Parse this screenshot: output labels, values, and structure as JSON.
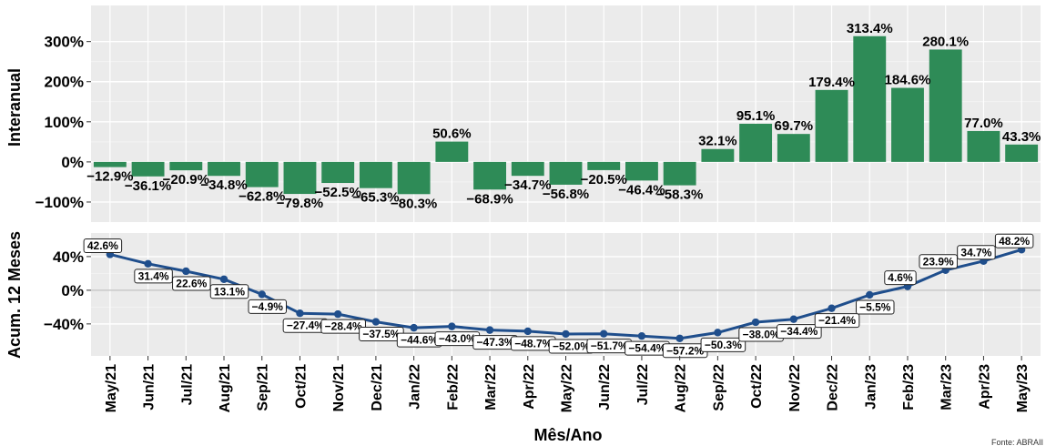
{
  "chart_data": [
    {
      "type": "bar",
      "ylabel": "Interanual",
      "categories": [
        "May/21",
        "Jun/21",
        "Jul/21",
        "Aug/21",
        "Sep/21",
        "Oct/21",
        "Nov/21",
        "Dec/21",
        "Jan/22",
        "Feb/22",
        "Mar/22",
        "Apr/22",
        "May/22",
        "Jun/22",
        "Jul/22",
        "Aug/22",
        "Sep/22",
        "Oct/22",
        "Nov/22",
        "Dec/22",
        "Jan/23",
        "Feb/23",
        "Mar/23",
        "Apr/23",
        "May/23"
      ],
      "values": [
        -12.9,
        -36.1,
        -20.9,
        -34.8,
        -62.8,
        -79.8,
        -52.5,
        -65.3,
        -80.3,
        50.6,
        -68.9,
        -34.7,
        -56.8,
        -20.5,
        -46.4,
        -58.3,
        32.1,
        95.1,
        69.7,
        179.4,
        313.4,
        184.6,
        280.1,
        77.0,
        43.3
      ],
      "labels": [
        "-12.9%",
        "-36.1%",
        "-20.9%",
        "-34.8%",
        "-62.8%",
        "-79.8%",
        "-52.5%",
        "-65.3%",
        "-80.3%",
        "50.6%",
        "-68.9%",
        "-34.7%",
        "-56.8%",
        "-20.5%",
        "-46.4%",
        "-58.3%",
        "32.1%",
        "95.1%",
        "69.7%",
        "179.4%",
        "313.4%",
        "184.6%",
        "280.1%",
        "77.0%",
        "43.3%"
      ],
      "yticks": [
        "-100%",
        "0%",
        "100%",
        "200%",
        "300%"
      ],
      "ytick_values": [
        -100,
        0,
        100,
        200,
        300
      ],
      "ylim": [
        -150,
        390
      ],
      "color": "#2e8b57"
    },
    {
      "type": "line",
      "ylabel": "Acum. 12 Meses",
      "xlabel": "Mês/Ano",
      "categories": [
        "May/21",
        "Jun/21",
        "Jul/21",
        "Aug/21",
        "Sep/21",
        "Oct/21",
        "Nov/21",
        "Dec/21",
        "Jan/22",
        "Feb/22",
        "Mar/22",
        "Apr/22",
        "May/22",
        "Jun/22",
        "Jul/22",
        "Aug/22",
        "Sep/22",
        "Oct/22",
        "Nov/22",
        "Dec/22",
        "Jan/23",
        "Feb/23",
        "Mar/23",
        "Apr/23",
        "May/23"
      ],
      "values": [
        42.6,
        31.4,
        22.6,
        13.1,
        -4.9,
        -27.4,
        -28.4,
        -37.5,
        -44.6,
        -43.0,
        -47.3,
        -48.7,
        -52.0,
        -51.7,
        -54.4,
        -57.2,
        -50.3,
        -38.0,
        -34.4,
        -21.4,
        -5.5,
        4.6,
        23.9,
        34.7,
        48.2
      ],
      "labels": [
        "42.6%",
        "31.4%",
        "22.6%",
        "13.1%",
        "-4.9%",
        "-27.4%",
        "-28.4%",
        "-37.5%",
        "-44.6%",
        "-43.0%",
        "-47.3%",
        "-48.7%",
        "-52.0%",
        "-51.7%",
        "-54.4%",
        "-57.2%",
        "-50.3%",
        "-38.0%",
        "-34.4%",
        "-21.4%",
        "-5.5%",
        "4.6%",
        "23.9%",
        "34.7%",
        "48.2%"
      ],
      "yticks": [
        "-40%",
        "0%",
        "40%"
      ],
      "ytick_values": [
        -40,
        0,
        40
      ],
      "ylim": [
        -78,
        68
      ],
      "color": "#1f4e8c"
    }
  ],
  "source_note": "Fonte: ABRAII"
}
